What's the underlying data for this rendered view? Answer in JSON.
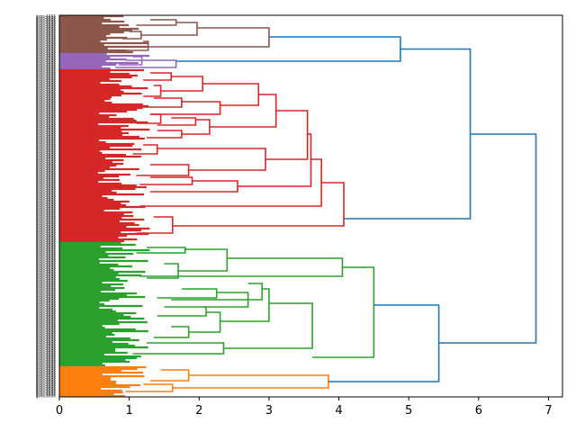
{
  "chart_data": {
    "type": "dendrogram",
    "orientation": "right",
    "title": "",
    "xlabel": "",
    "ylabel": "",
    "xlim": [
      0,
      7.2
    ],
    "xticks": [
      0,
      1,
      2,
      3,
      4,
      5,
      6,
      7
    ],
    "xtick_labels": [
      "0",
      "1",
      "2",
      "3",
      "4",
      "5",
      "6",
      "7"
    ],
    "n_leaves": 212,
    "leaf_labels_legible": false,
    "leaf_label_sample": "gene-XXXX",
    "above_threshold_color": "#1f77b4",
    "clusters": [
      {
        "name": "brown",
        "color": "#8c564b",
        "leaf_range": [
          0,
          21
        ]
      },
      {
        "name": "purple",
        "color": "#9467bd",
        "leaf_range": [
          21,
          30
        ]
      },
      {
        "name": "red",
        "color": "#d62728",
        "leaf_range": [
          30,
          126
        ]
      },
      {
        "name": "green",
        "color": "#2ca02c",
        "leaf_range": [
          126,
          195
        ]
      },
      {
        "name": "orange",
        "color": "#ff7f0e",
        "leaf_range": [
          195,
          212
        ]
      }
    ],
    "links": [
      {
        "y": [
          7.0,
          17.5
        ],
        "x": [
          1.97,
          1.27
        ],
        "h": 3.0,
        "c": "brown"
      },
      {
        "y": [
          4.0,
          11.0
        ],
        "x": [
          1.67,
          1.17
        ],
        "h": 1.97,
        "c": "brown"
      },
      {
        "y": [
          2.5,
          5.5
        ],
        "x": [
          1.3,
          1.1
        ],
        "h": 1.67,
        "c": "brown"
      },
      {
        "y": [
          9.0,
          13.0
        ],
        "x": [
          1.0,
          0.9
        ],
        "h": 1.17,
        "c": "brown"
      },
      {
        "y": [
          14.5,
          19.5
        ],
        "x": [
          1.2,
          0.95
        ],
        "h": 1.27,
        "c": "brown"
      },
      {
        "y": [
          23.0,
          27.5
        ],
        "x": [
          1.05,
          0.85
        ],
        "h": 1.18,
        "c": "purple"
      },
      {
        "y": [
          25.0,
          29.0
        ],
        "x": [
          0.95,
          0.8
        ],
        "h": 1.67,
        "c": "purple"
      },
      {
        "y": [
          38.0,
          50.0
        ],
        "x": [
          2.05,
          2.3
        ],
        "h": 2.85,
        "c": "red"
      },
      {
        "y": [
          34.0,
          42.0
        ],
        "x": [
          1.6,
          1.45
        ],
        "h": 2.05,
        "c": "red"
      },
      {
        "y": [
          32.0,
          36.0
        ],
        "x": [
          1.3,
          1.2
        ],
        "h": 1.6,
        "c": "red"
      },
      {
        "y": [
          39.0,
          45.0
        ],
        "x": [
          1.35,
          1.2
        ],
        "h": 1.45,
        "c": "red"
      },
      {
        "y": [
          48.0,
          55.0
        ],
        "x": [
          1.75,
          1.3
        ],
        "h": 2.3,
        "c": "red"
      },
      {
        "y": [
          46.0,
          51.0
        ],
        "x": [
          1.35,
          1.2
        ],
        "h": 1.75,
        "c": "red"
      },
      {
        "y": [
          55.0,
          60.0
        ],
        "x": [
          1.3,
          1.1
        ],
        "h": 1.45,
        "c": "red"
      },
      {
        "y": [
          44.0,
          62.0
        ],
        "x": [
          2.85,
          2.15
        ],
        "h": 3.1,
        "c": "red"
      },
      {
        "y": [
          58.0,
          66.0
        ],
        "x": [
          1.95,
          1.75
        ],
        "h": 2.15,
        "c": "red"
      },
      {
        "y": [
          57.0,
          61.0
        ],
        "x": [
          1.6,
          1.4
        ],
        "h": 1.95,
        "c": "red"
      },
      {
        "y": [
          64.0,
          68.0
        ],
        "x": [
          1.4,
          1.25
        ],
        "h": 1.75,
        "c": "red"
      },
      {
        "y": [
          53.0,
          80.0
        ],
        "x": [
          3.1,
          2.95
        ],
        "h": 3.55,
        "c": "red"
      },
      {
        "y": [
          74.0,
          86.0
        ],
        "x": [
          1.4,
          1.85
        ],
        "h": 2.95,
        "c": "red"
      },
      {
        "y": [
          72.0,
          77.0
        ],
        "x": [
          1.2,
          1.05
        ],
        "h": 1.4,
        "c": "red"
      },
      {
        "y": [
          83.0,
          89.0
        ],
        "x": [
          1.3,
          1.1
        ],
        "h": 1.85,
        "c": "red"
      },
      {
        "y": [
          66.0,
          95.0
        ],
        "x": [
          3.55,
          2.55
        ],
        "h": 3.6,
        "c": "red"
      },
      {
        "y": [
          92.0,
          98.0
        ],
        "x": [
          1.9,
          1.3
        ],
        "h": 2.55,
        "c": "red"
      },
      {
        "y": [
          90.0,
          94.0
        ],
        "x": [
          1.3,
          1.15
        ],
        "h": 1.9,
        "c": "red"
      },
      {
        "y": [
          80.0,
          106.0
        ],
        "x": [
          3.6,
          1.15
        ],
        "h": 3.75,
        "c": "red"
      },
      {
        "y": [
          93.0,
          117.0
        ],
        "x": [
          3.75,
          1.62
        ],
        "h": 4.07,
        "c": "red"
      },
      {
        "y": [
          112.0,
          121.0
        ],
        "x": [
          1.35,
          1.1
        ],
        "h": 1.62,
        "c": "red"
      },
      {
        "y": [
          135.0,
          145.0
        ],
        "x": [
          2.4,
          1.15
        ],
        "h": 4.05,
        "c": "green"
      },
      {
        "y": [
          130.0,
          142.0
        ],
        "x": [
          1.8,
          1.7
        ],
        "h": 2.4,
        "c": "green"
      },
      {
        "y": [
          129.0,
          132.0
        ],
        "x": [
          1.25,
          1.1
        ],
        "h": 1.8,
        "c": "green"
      },
      {
        "y": [
          138.0,
          146.0
        ],
        "x": [
          1.5,
          1.25
        ],
        "h": 1.7,
        "c": "green"
      },
      {
        "y": [
          140.0,
          190.0
        ],
        "x": [
          4.05,
          3.62
        ],
        "h": 4.5,
        "c": "green"
      },
      {
        "y": [
          160.0,
          185.0
        ],
        "x": [
          3.0,
          2.35
        ],
        "h": 3.62,
        "c": "green"
      },
      {
        "y": [
          152.0,
          170.0
        ],
        "x": [
          2.9,
          2.3
        ],
        "h": 3.0,
        "c": "green"
      },
      {
        "y": [
          149.0,
          158.0
        ],
        "x": [
          2.7,
          1.6
        ],
        "h": 2.9,
        "c": "green"
      },
      {
        "y": [
          154.0,
          162.0
        ],
        "x": [
          2.25,
          1.5
        ],
        "h": 2.7,
        "c": "green"
      },
      {
        "y": [
          152.0,
          157.0
        ],
        "x": [
          1.75,
          1.4
        ],
        "h": 2.25,
        "c": "green"
      },
      {
        "y": [
          165.0,
          176.0
        ],
        "x": [
          2.1,
          1.85
        ],
        "h": 2.3,
        "c": "green"
      },
      {
        "y": [
          162.0,
          167.0
        ],
        "x": [
          2.05,
          1.4
        ],
        "h": 2.1,
        "c": "green"
      },
      {
        "y": [
          173.0,
          179.0
        ],
        "x": [
          1.6,
          1.35
        ],
        "h": 1.85,
        "c": "green"
      },
      {
        "y": [
          182.0,
          188.0
        ],
        "x": [
          1.25,
          1.05
        ],
        "h": 2.35,
        "c": "green"
      },
      {
        "y": [
          200.0,
          207.0
        ],
        "x": [
          1.85,
          1.62
        ],
        "h": 3.85,
        "c": "orange"
      },
      {
        "y": [
          197.0,
          203.0
        ],
        "x": [
          1.45,
          1.3
        ],
        "h": 1.85,
        "c": "orange"
      },
      {
        "y": [
          205.0,
          209.0
        ],
        "x": [
          1.2,
          0.95
        ],
        "h": 1.62,
        "c": "orange"
      },
      {
        "y": [
          12.0,
          25.5
        ],
        "x": [
          3.0,
          1.67
        ],
        "h": 4.88,
        "c": "blue"
      },
      {
        "y": [
          18.75,
          113.0
        ],
        "x": [
          4.88,
          4.07
        ],
        "h": 5.88,
        "c": "blue"
      },
      {
        "y": [
          161.0,
          203.5
        ],
        "x": [
          4.5,
          3.85
        ],
        "h": 5.43,
        "c": "blue"
      },
      {
        "y": [
          66.0,
          182.0
        ],
        "x": [
          5.88,
          5.43
        ],
        "h": 6.82,
        "c": "blue"
      }
    ]
  }
}
